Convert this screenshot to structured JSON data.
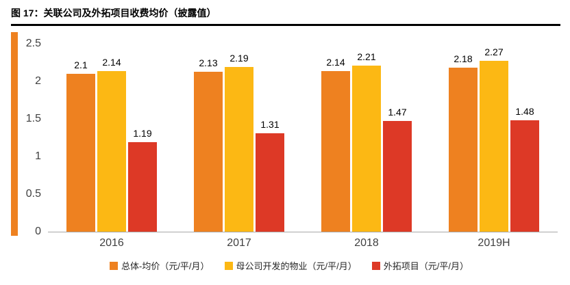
{
  "title": "图 17：关联公司及外拓项目收费均价（披露值）",
  "colors": {
    "accent": "#EE8120",
    "axis_line": "#A6A6A6",
    "title_rule": "#000000"
  },
  "chart_data": {
    "type": "bar",
    "title": "关联公司及外拓项目收费均价（披露值）",
    "categories": [
      "2016",
      "2017",
      "2018",
      "2019H"
    ],
    "series": [
      {
        "name": "总体-均价（元/平/月）",
        "color": "#EE8120",
        "values": [
          2.1,
          2.13,
          2.14,
          2.18
        ]
      },
      {
        "name": "母公司开发的物业（元/平/月）",
        "color": "#FCB814",
        "values": [
          2.14,
          2.19,
          2.21,
          2.27
        ]
      },
      {
        "name": "外拓项目（元/平/月）",
        "color": "#DD3926",
        "values": [
          1.19,
          1.31,
          1.47,
          1.48
        ]
      }
    ],
    "xlabel": "",
    "ylabel": "",
    "ylim": [
      0,
      2.5
    ],
    "yticks": [
      0,
      0.5,
      1,
      1.5,
      2,
      2.5
    ],
    "ytick_labels": [
      "0",
      "0.5",
      "1",
      "1.5",
      "2",
      "2.5"
    ],
    "grid": false,
    "value_labels": true,
    "legend_position": "bottom"
  }
}
